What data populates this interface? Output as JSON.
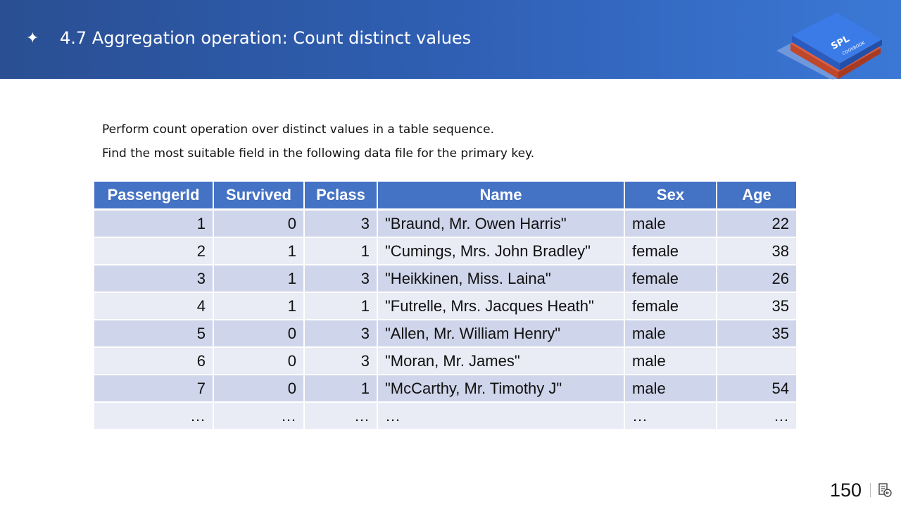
{
  "header": {
    "bullet_glyph": "✦",
    "title": "4.7 Aggregation operation: Count distinct values",
    "logo": {
      "icon": "spl-cookbook-logo",
      "text_main": "SPL",
      "text_sub": "COOKBOOK"
    }
  },
  "description": [
    "Perform count operation over distinct values in a table sequence.",
    "Find the most suitable field in the following data file for the primary key."
  ],
  "table": {
    "columns": [
      "PassengerId",
      "Survived",
      "Pclass",
      "Name",
      "Sex",
      "Age"
    ],
    "rows": [
      [
        "1",
        "0",
        "3",
        "\"Braund, Mr. Owen Harris\"",
        "male",
        "22"
      ],
      [
        "2",
        "1",
        "1",
        "\"Cumings, Mrs. John Bradley\"",
        "female",
        "38"
      ],
      [
        "3",
        "1",
        "3",
        "\"Heikkinen, Miss. Laina\"",
        "female",
        "26"
      ],
      [
        "4",
        "1",
        "1",
        "\"Futrelle, Mrs. Jacques Heath\"",
        "female",
        "35"
      ],
      [
        "5",
        "0",
        "3",
        "\"Allen, Mr. William Henry\"",
        "male",
        "35"
      ],
      [
        "6",
        "0",
        "3",
        "\"Moran, Mr. James\"",
        "male",
        ""
      ],
      [
        "7",
        "0",
        "1",
        "\"McCarthy, Mr. Timothy J\"",
        "male",
        "54"
      ],
      [
        "…",
        "…",
        "…",
        "…",
        "…",
        "…"
      ]
    ]
  },
  "footer": {
    "page_number": "150",
    "icon": "notes-icon"
  },
  "colors": {
    "banner_start": "#2a4f93",
    "banner_end": "#3b78d6",
    "header_row": "#4472c4",
    "row_odd": "#cfd5ea",
    "row_even": "#e9ebf5"
  }
}
